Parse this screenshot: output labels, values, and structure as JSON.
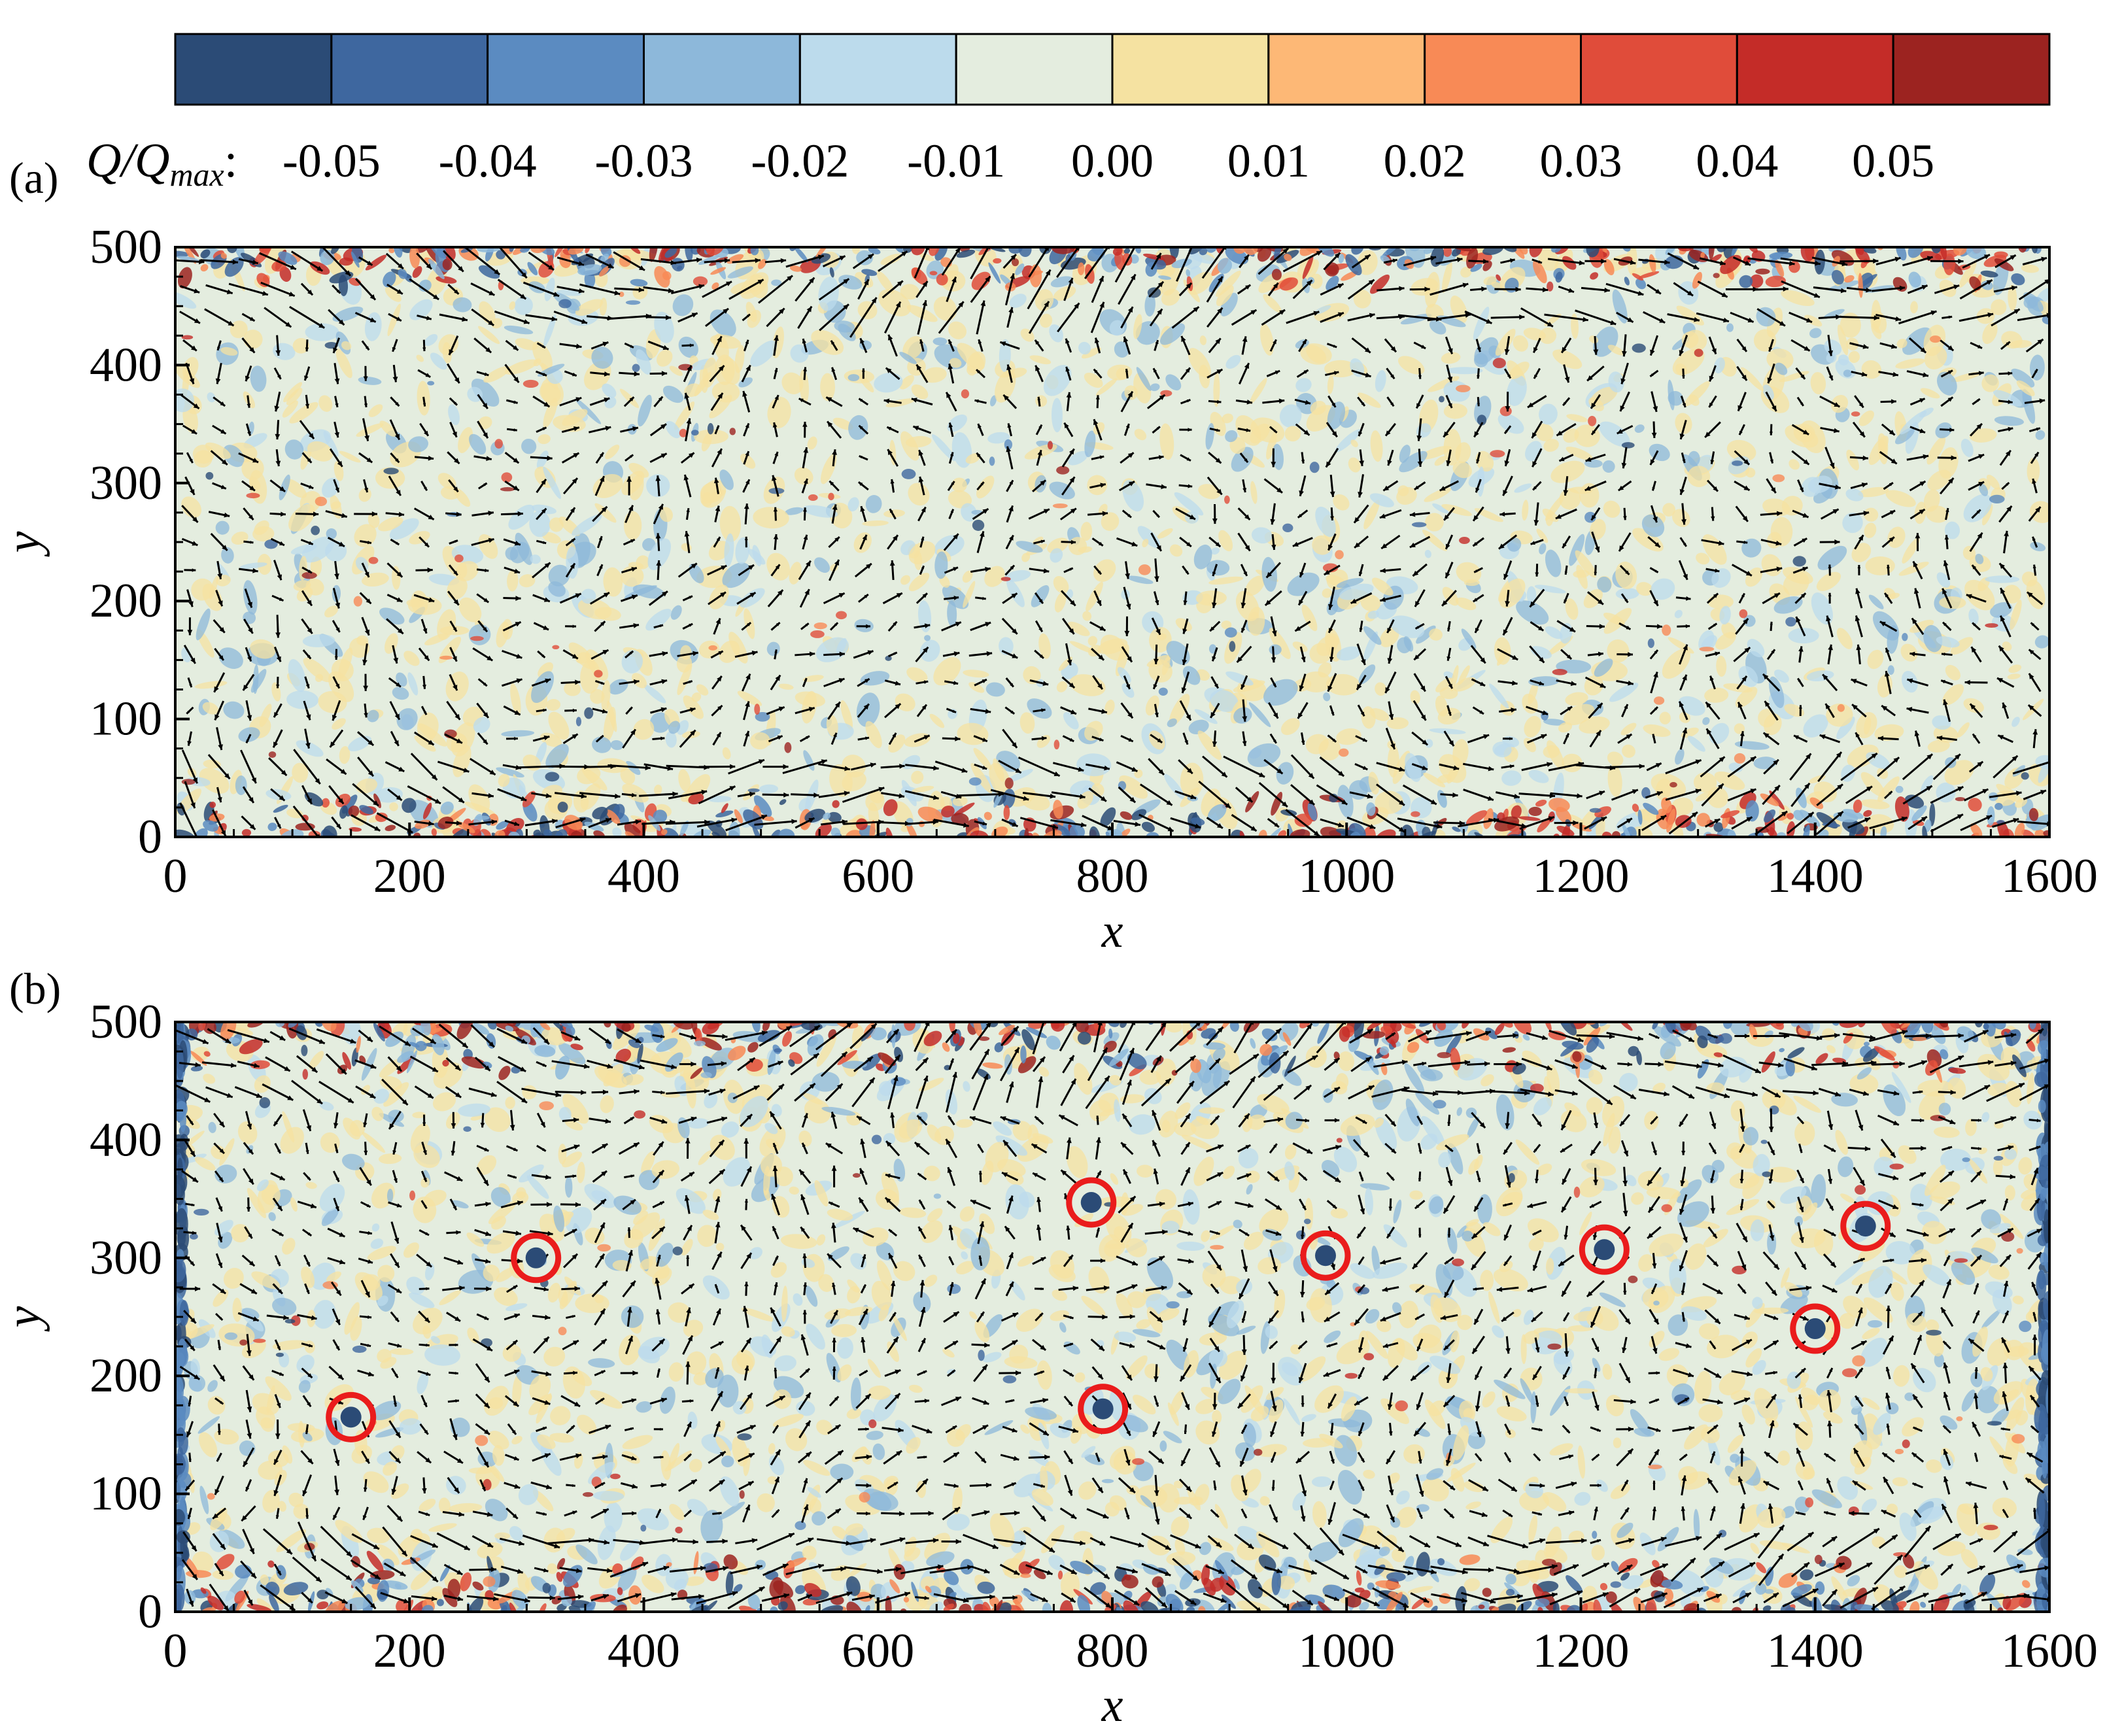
{
  "colorbar": {
    "label_main": "Q/Q",
    "label_sub": "max",
    "label_suffix": ":",
    "ticks": [
      "-0.05",
      "-0.04",
      "-0.03",
      "-0.02",
      "-0.01",
      "0.00",
      "0.01",
      "0.02",
      "0.03",
      "0.04",
      "0.05"
    ],
    "colors": [
      "#2b4b76",
      "#3e679f",
      "#5b8bc1",
      "#8db8da",
      "#bcdbec",
      "#e4eddf",
      "#f5e2a1",
      "#fdb876",
      "#f88a56",
      "#e04c3a",
      "#c42c28",
      "#9c2320"
    ]
  },
  "panels": [
    {
      "tag": "(a)",
      "xlabel": "x",
      "ylabel": "y",
      "circles": []
    },
    {
      "tag": "(b)",
      "xlabel": "x",
      "ylabel": "y",
      "circles": [
        {
          "x": 150,
          "y": 165
        },
        {
          "x": 308,
          "y": 300
        },
        {
          "x": 782,
          "y": 347
        },
        {
          "x": 792,
          "y": 172
        },
        {
          "x": 982,
          "y": 302
        },
        {
          "x": 1220,
          "y": 307
        },
        {
          "x": 1400,
          "y": 240
        },
        {
          "x": 1443,
          "y": 327
        }
      ]
    }
  ],
  "chart_data": [
    {
      "type": "heatmap",
      "panel": "(a)",
      "title": "",
      "xlabel": "x",
      "ylabel": "y",
      "xlim": [
        0,
        1600
      ],
      "ylim": [
        0,
        500
      ],
      "xticks": [
        "0",
        "200",
        "400",
        "600",
        "800",
        "1000",
        "1200",
        "1400",
        "1600"
      ],
      "yticks": [
        "0",
        "100",
        "200",
        "300",
        "400",
        "500"
      ],
      "colorbar_range": [
        -0.05,
        0.05
      ],
      "overlay": "velocity vectors (quiver)"
    },
    {
      "type": "heatmap",
      "panel": "(b)",
      "title": "",
      "xlabel": "x",
      "ylabel": "y",
      "xlim": [
        0,
        1600
      ],
      "ylim": [
        0,
        500
      ],
      "xticks": [
        "0",
        "200",
        "400",
        "600",
        "800",
        "1000",
        "1200",
        "1400",
        "1600"
      ],
      "yticks": [
        "0",
        "100",
        "200",
        "300",
        "400",
        "500"
      ],
      "colorbar_range": [
        -0.05,
        0.05
      ],
      "overlay": "velocity vectors (quiver)",
      "highlighted_vortices": [
        {
          "x": 150,
          "y": 165
        },
        {
          "x": 308,
          "y": 300
        },
        {
          "x": 782,
          "y": 347
        },
        {
          "x": 792,
          "y": 172
        },
        {
          "x": 982,
          "y": 302
        },
        {
          "x": 1220,
          "y": 307
        },
        {
          "x": 1400,
          "y": 240
        },
        {
          "x": 1443,
          "y": 327
        }
      ]
    }
  ]
}
